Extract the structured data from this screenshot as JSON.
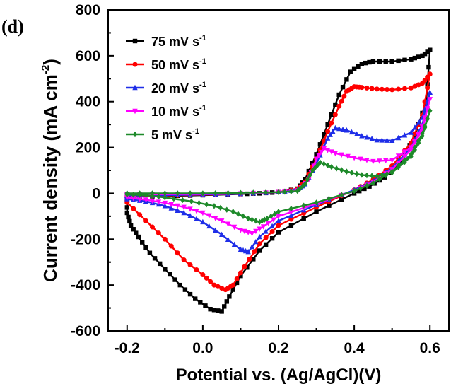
{
  "panel_label": "(d)",
  "chart_data": {
    "type": "line",
    "title": "",
    "xlabel": "Potential vs. (Ag/AgCl)(V)",
    "ylabel_main": "Current density (mA cm",
    "ylabel_sup": "-2",
    "ylabel_close": ")",
    "xlim": [
      -0.25,
      0.65
    ],
    "ylim": [
      -600,
      800
    ],
    "xticks": [
      "-0.2",
      "0.0",
      "0.2",
      "0.4",
      "0.6"
    ],
    "xtick_values": [
      -0.2,
      0.0,
      0.2,
      0.4,
      0.6
    ],
    "yticks": [
      "-600",
      "-400",
      "-200",
      "0",
      "200",
      "400",
      "600",
      "800"
    ],
    "ytick_values": [
      -600,
      -400,
      -200,
      0,
      200,
      400,
      600,
      800
    ],
    "legend_position": "top-left",
    "series": [
      {
        "name": "75 mV s",
        "name_sup": "-1",
        "color": "#000000",
        "marker": "square",
        "anodic": [
          [
            -0.2,
            -15
          ],
          [
            -0.1,
            -12
          ],
          [
            0.0,
            -8
          ],
          [
            0.1,
            -3
          ],
          [
            0.15,
            0
          ],
          [
            0.2,
            5
          ],
          [
            0.25,
            20
          ],
          [
            0.27,
            60
          ],
          [
            0.3,
            170
          ],
          [
            0.33,
            300
          ],
          [
            0.36,
            430
          ],
          [
            0.39,
            530
          ],
          [
            0.42,
            565
          ],
          [
            0.45,
            575
          ],
          [
            0.5,
            575
          ],
          [
            0.55,
            585
          ],
          [
            0.58,
            600
          ],
          [
            0.6,
            625
          ]
        ],
        "cathodic": [
          [
            0.6,
            625
          ],
          [
            0.59,
            400
          ],
          [
            0.56,
            250
          ],
          [
            0.52,
            130
          ],
          [
            0.48,
            70
          ],
          [
            0.44,
            30
          ],
          [
            0.4,
            0
          ],
          [
            0.3,
            -80
          ],
          [
            0.2,
            -170
          ],
          [
            0.15,
            -250
          ],
          [
            0.1,
            -360
          ],
          [
            0.07,
            -450
          ],
          [
            0.05,
            -515
          ],
          [
            0.02,
            -505
          ],
          [
            -0.02,
            -460
          ],
          [
            -0.06,
            -400
          ],
          [
            -0.1,
            -330
          ],
          [
            -0.14,
            -260
          ],
          [
            -0.17,
            -190
          ],
          [
            -0.19,
            -140
          ],
          [
            -0.2,
            -85
          ],
          [
            -0.2,
            -15
          ]
        ]
      },
      {
        "name": "50 mV s",
        "name_sup": "-1",
        "color": "#ff0000",
        "marker": "circle",
        "anodic": [
          [
            -0.2,
            -15
          ],
          [
            -0.1,
            -10
          ],
          [
            0.0,
            -6
          ],
          [
            0.1,
            -2
          ],
          [
            0.2,
            5
          ],
          [
            0.25,
            18
          ],
          [
            0.27,
            50
          ],
          [
            0.3,
            150
          ],
          [
            0.33,
            270
          ],
          [
            0.36,
            380
          ],
          [
            0.38,
            445
          ],
          [
            0.4,
            465
          ],
          [
            0.42,
            462
          ],
          [
            0.46,
            455
          ],
          [
            0.5,
            452
          ],
          [
            0.55,
            460
          ],
          [
            0.58,
            480
          ],
          [
            0.6,
            520
          ]
        ],
        "cathodic": [
          [
            0.6,
            520
          ],
          [
            0.58,
            340
          ],
          [
            0.55,
            220
          ],
          [
            0.5,
            120
          ],
          [
            0.45,
            60
          ],
          [
            0.4,
            15
          ],
          [
            0.3,
            -60
          ],
          [
            0.2,
            -140
          ],
          [
            0.15,
            -220
          ],
          [
            0.11,
            -320
          ],
          [
            0.08,
            -400
          ],
          [
            0.06,
            -420
          ],
          [
            0.03,
            -400
          ],
          [
            0.0,
            -355
          ],
          [
            -0.05,
            -290
          ],
          [
            -0.1,
            -200
          ],
          [
            -0.15,
            -120
          ],
          [
            -0.2,
            -40
          ],
          [
            -0.2,
            -15
          ]
        ]
      },
      {
        "name": "20 mV s",
        "name_sup": "-1",
        "color": "#1f2ee8",
        "marker": "triangle",
        "anodic": [
          [
            -0.2,
            -10
          ],
          [
            -0.1,
            -8
          ],
          [
            0.0,
            -5
          ],
          [
            0.1,
            -2
          ],
          [
            0.2,
            5
          ],
          [
            0.25,
            15
          ],
          [
            0.27,
            40
          ],
          [
            0.3,
            130
          ],
          [
            0.33,
            240
          ],
          [
            0.35,
            285
          ],
          [
            0.38,
            275
          ],
          [
            0.42,
            250
          ],
          [
            0.46,
            232
          ],
          [
            0.5,
            230
          ],
          [
            0.55,
            265
          ],
          [
            0.58,
            330
          ],
          [
            0.6,
            440
          ]
        ],
        "cathodic": [
          [
            0.6,
            440
          ],
          [
            0.58,
            300
          ],
          [
            0.55,
            200
          ],
          [
            0.5,
            110
          ],
          [
            0.45,
            55
          ],
          [
            0.4,
            15
          ],
          [
            0.3,
            -50
          ],
          [
            0.2,
            -120
          ],
          [
            0.15,
            -190
          ],
          [
            0.12,
            -255
          ],
          [
            0.1,
            -245
          ],
          [
            0.05,
            -180
          ],
          [
            0.0,
            -125
          ],
          [
            -0.05,
            -85
          ],
          [
            -0.1,
            -55
          ],
          [
            -0.15,
            -35
          ],
          [
            -0.2,
            -25
          ],
          [
            -0.2,
            -10
          ]
        ]
      },
      {
        "name": "10 mV s",
        "name_sup": "-1",
        "color": "#ff00ff",
        "marker": "triangle-down",
        "anodic": [
          [
            -0.2,
            -5
          ],
          [
            -0.1,
            -4
          ],
          [
            0.0,
            -3
          ],
          [
            0.1,
            -1
          ],
          [
            0.2,
            5
          ],
          [
            0.25,
            12
          ],
          [
            0.28,
            60
          ],
          [
            0.3,
            150
          ],
          [
            0.32,
            195
          ],
          [
            0.35,
            175
          ],
          [
            0.4,
            155
          ],
          [
            0.45,
            140
          ],
          [
            0.5,
            145
          ],
          [
            0.55,
            200
          ],
          [
            0.58,
            280
          ],
          [
            0.6,
            410
          ]
        ],
        "cathodic": [
          [
            0.6,
            410
          ],
          [
            0.58,
            290
          ],
          [
            0.55,
            190
          ],
          [
            0.5,
            105
          ],
          [
            0.45,
            50
          ],
          [
            0.4,
            10
          ],
          [
            0.3,
            -45
          ],
          [
            0.2,
            -100
          ],
          [
            0.16,
            -145
          ],
          [
            0.13,
            -175
          ],
          [
            0.1,
            -160
          ],
          [
            0.05,
            -120
          ],
          [
            0.0,
            -85
          ],
          [
            -0.05,
            -60
          ],
          [
            -0.1,
            -42
          ],
          [
            -0.15,
            -28
          ],
          [
            -0.2,
            -18
          ],
          [
            -0.2,
            -5
          ]
        ]
      },
      {
        "name": "5  mV s",
        "name_sup": "-1",
        "color": "#1e8a2a",
        "marker": "diamond",
        "anodic": [
          [
            -0.2,
            0
          ],
          [
            -0.1,
            0
          ],
          [
            0.0,
            0
          ],
          [
            0.1,
            2
          ],
          [
            0.2,
            5
          ],
          [
            0.25,
            10
          ],
          [
            0.27,
            40
          ],
          [
            0.29,
            100
          ],
          [
            0.31,
            135
          ],
          [
            0.34,
            115
          ],
          [
            0.38,
            95
          ],
          [
            0.42,
            80
          ],
          [
            0.46,
            75
          ],
          [
            0.5,
            90
          ],
          [
            0.55,
            160
          ],
          [
            0.58,
            250
          ],
          [
            0.6,
            360
          ]
        ],
        "cathodic": [
          [
            0.6,
            360
          ],
          [
            0.58,
            260
          ],
          [
            0.55,
            170
          ],
          [
            0.5,
            95
          ],
          [
            0.45,
            45
          ],
          [
            0.4,
            10
          ],
          [
            0.3,
            -40
          ],
          [
            0.2,
            -80
          ],
          [
            0.17,
            -110
          ],
          [
            0.15,
            -125
          ],
          [
            0.12,
            -110
          ],
          [
            0.08,
            -80
          ],
          [
            0.03,
            -55
          ],
          [
            -0.03,
            -35
          ],
          [
            -0.1,
            -18
          ],
          [
            -0.15,
            -8
          ],
          [
            -0.2,
            -5
          ],
          [
            -0.2,
            0
          ]
        ]
      }
    ]
  }
}
